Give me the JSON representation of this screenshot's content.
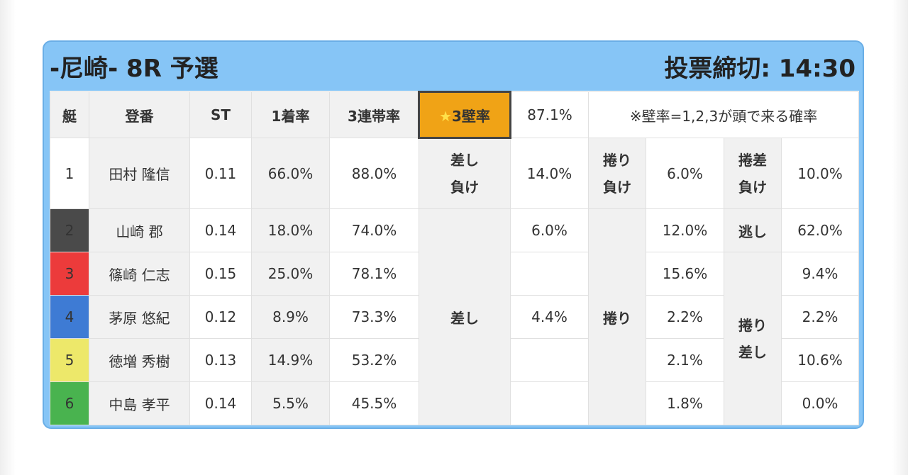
{
  "header": {
    "title": "-尼崎- 8R 予選",
    "deadline": "投票締切: 14:30"
  },
  "table": {
    "col_boat": "艇",
    "col_reg": "登番",
    "col_st": "ST",
    "col_win": "1着率",
    "col_top3": "3連帯率",
    "wall_label": "3壁率",
    "wall_icon": "star-icon",
    "wall_value": "87.1%",
    "note": "※壁率=1,2,3が頭で来る確率"
  },
  "racers": [
    {
      "boat": "1",
      "name": "田村 隆信",
      "st": "0.11",
      "win": "66.0%",
      "top3": "88.0%"
    },
    {
      "boat": "2",
      "name": "山崎 郡",
      "st": "0.14",
      "win": "18.0%",
      "top3": "74.0%"
    },
    {
      "boat": "3",
      "name": "篠崎 仁志",
      "st": "0.15",
      "win": "25.0%",
      "top3": "78.1%"
    },
    {
      "boat": "4",
      "name": "茅原 悠紀",
      "st": "0.12",
      "win": "8.9%",
      "top3": "73.3%"
    },
    {
      "boat": "5",
      "name": "徳増 秀樹",
      "st": "0.13",
      "win": "14.9%",
      "top3": "53.2%"
    },
    {
      "boat": "6",
      "name": "中島 孝平",
      "st": "0.14",
      "win": "5.5%",
      "top3": "45.5%"
    }
  ],
  "patterns": {
    "sashi_make": {
      "line1": "差し",
      "line2": "負け",
      "value": "14.0%"
    },
    "makuri_make": {
      "line1": "捲り",
      "line2": "負け",
      "value": "6.0%"
    },
    "makurisashi_make": {
      "line1": "捲差",
      "line2": "負け",
      "value": "10.0%"
    },
    "sashi": {
      "label": "差し",
      "v2": "6.0%",
      "v4": "4.4%"
    },
    "makuri": {
      "label": "捲り",
      "v2": "12.0%",
      "v3": "15.6%",
      "v4": "2.2%",
      "v5": "2.1%",
      "v6": "1.8%"
    },
    "nige": {
      "label": "逃し",
      "value": "62.0%"
    },
    "makurisashi": {
      "line1": "捲り",
      "line2": "差し",
      "v3": "9.4%",
      "v4": "2.2%",
      "v5": "10.6%",
      "v6": "0.0%"
    }
  },
  "colors": {
    "header_bg": "#86c5f6",
    "star_cell": "#f0a316",
    "boat1": "#ffffff",
    "boat2": "#4a4a4a",
    "boat3": "#ec3b3b",
    "boat4": "#3e7bd4",
    "boat5": "#ede86a",
    "boat6": "#49b34f"
  }
}
